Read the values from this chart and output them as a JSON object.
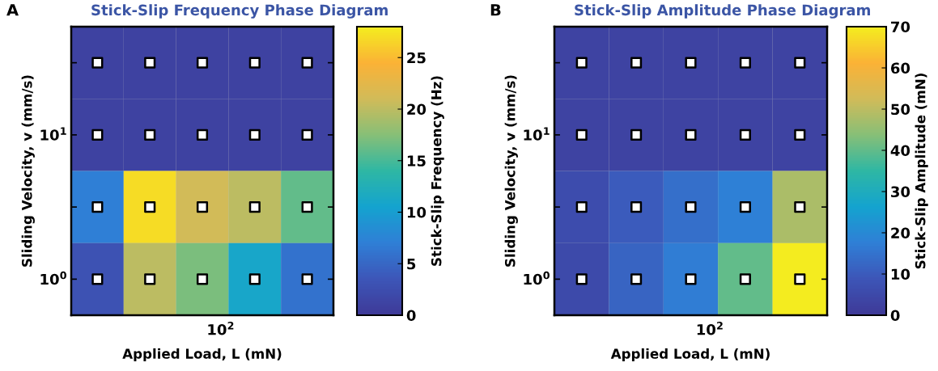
{
  "chart_data": [
    {
      "type": "heatmap",
      "title": "Stick-Slip Frequency Phase Diagram",
      "annotations": [
        "A",
        "10$^{2}$"
      ],
      "xlabel": "Applied Load, L (mN)",
      "ylabel": "Sliding Velocity, v (mm/s)",
      "clabel": "Stick-Slip Frequency (Hz)",
      "categories": [
        null,
        null,
        null,
        null,
        null
      ],
      "y_categories": [
        null,
        "10$^{1}$",
        null,
        "10$^{0}$"
      ],
      "cells": [
        [
          1,
          1,
          1,
          1,
          1
        ],
        [
          1,
          1,
          1,
          1,
          1
        ],
        [
          7,
          27,
          21,
          20,
          16
        ],
        [
          3,
          20,
          17,
          11,
          6
        ]
      ],
      "marker": "square",
      "clim": [
        0,
        28
      ],
      "cticks": [
        0,
        5,
        10,
        15,
        20,
        25
      ]
    },
    {
      "type": "heatmap",
      "title": "Stick-Slip Amplitude Phase Diagram",
      "annotations": [
        "B",
        "10$^{2}$"
      ],
      "xlabel": "Applied Load, L (mN)",
      "ylabel": "Sliding Velocity, v (mm/s)",
      "clabel": "Stick-Slip Amplitude (mN)",
      "categories": [
        null,
        null,
        null,
        null,
        null
      ],
      "y_categories": [
        null,
        "10$^{1}$",
        null,
        "10$^{0}$"
      ],
      "cells": [
        [
          3,
          3,
          3,
          3,
          3
        ],
        [
          3,
          3,
          3,
          3,
          3
        ],
        [
          6,
          10,
          14,
          18,
          48
        ],
        [
          5,
          12,
          17,
          40,
          70
        ]
      ],
      "marker": "square",
      "clim": [
        0,
        70
      ],
      "cticks": [
        0,
        10,
        20,
        30,
        40,
        50,
        60,
        70
      ]
    }
  ]
}
